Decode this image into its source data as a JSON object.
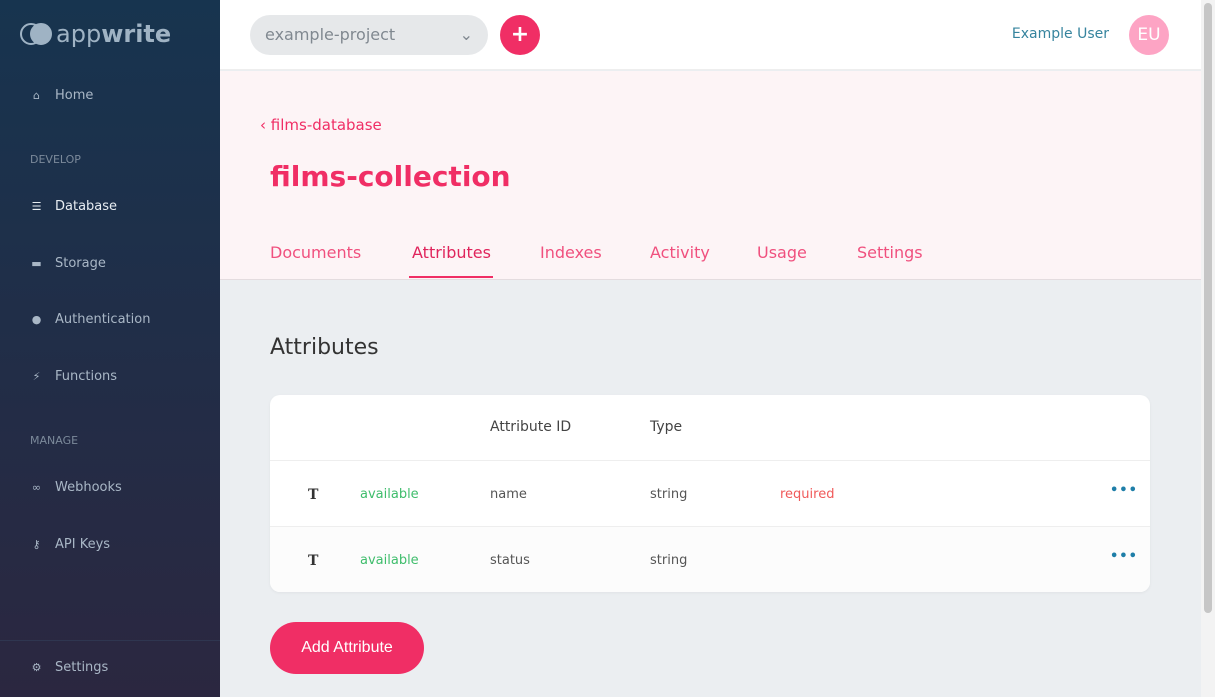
{
  "app": {
    "logo_light": "app",
    "logo_bold": "write"
  },
  "sidebar": {
    "items": [
      {
        "label": "Home",
        "icon": "home-icon"
      },
      {
        "label": "Database",
        "icon": "database-icon"
      },
      {
        "label": "Storage",
        "icon": "folder-icon"
      },
      {
        "label": "Authentication",
        "icon": "users-icon"
      },
      {
        "label": "Functions",
        "icon": "bolt-icon"
      },
      {
        "label": "Webhooks",
        "icon": "link-icon"
      },
      {
        "label": "API Keys",
        "icon": "key-icon"
      },
      {
        "label": "Settings",
        "icon": "gear-icon"
      }
    ],
    "sections": [
      "DEVELOP",
      "MANAGE"
    ]
  },
  "topbar": {
    "project": "example-project",
    "user": "Example User",
    "avatar": "EU"
  },
  "header": {
    "back": "films-database",
    "title": "films-collection",
    "tabs": [
      "Documents",
      "Attributes",
      "Indexes",
      "Activity",
      "Usage",
      "Settings"
    ],
    "active_tab": "Attributes"
  },
  "main": {
    "heading": "Attributes",
    "columns": [
      "Attribute ID",
      "Type"
    ],
    "rows": [
      {
        "icon": "T",
        "status": "available",
        "id": "name",
        "type": "string",
        "required": "required"
      },
      {
        "icon": "T",
        "status": "available",
        "id": "status",
        "type": "string",
        "required": ""
      }
    ],
    "add_label": "Add Attribute"
  },
  "colors": {
    "accent": "#f02e65",
    "available": "#3fbd6c",
    "required": "#f05a5a"
  }
}
